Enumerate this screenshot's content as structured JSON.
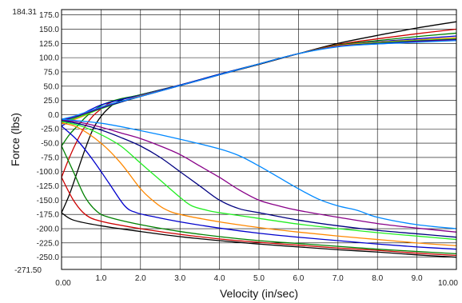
{
  "chart_data": {
    "type": "line",
    "xlabel": "Velocity (in/sec)",
    "ylabel": "Force (lbs)",
    "xlim": [
      0,
      10
    ],
    "ylim": [
      -271.5,
      184.31
    ],
    "ylim_labels": {
      "max": "184.31",
      "min": "-271.50"
    },
    "x_ticks": [
      {
        "v": 0,
        "label": "0.00"
      },
      {
        "v": 1,
        "label": "1.0"
      },
      {
        "v": 2,
        "label": "2.0"
      },
      {
        "v": 3,
        "label": "3.0"
      },
      {
        "v": 4,
        "label": "4.0"
      },
      {
        "v": 5,
        "label": "5.0"
      },
      {
        "v": 6,
        "label": "6.0"
      },
      {
        "v": 7,
        "label": "7.0"
      },
      {
        "v": 8,
        "label": "8.0"
      },
      {
        "v": 9,
        "label": "9.0"
      },
      {
        "v": 10,
        "label": "10.00"
      }
    ],
    "y_ticks": [
      {
        "v": 175,
        "label": "175.0"
      },
      {
        "v": 150,
        "label": "150.0"
      },
      {
        "v": 125,
        "label": "125.0"
      },
      {
        "v": 100,
        "label": "100.0"
      },
      {
        "v": 75,
        "label": "75.0"
      },
      {
        "v": 50,
        "label": "50.0"
      },
      {
        "v": 25,
        "label": "25.0"
      },
      {
        "v": 0,
        "label": "0.0"
      },
      {
        "v": -25,
        "label": "-25.0"
      },
      {
        "v": -50,
        "label": "-50.0"
      },
      {
        "v": -75,
        "label": "-75.0"
      },
      {
        "v": -100,
        "label": "-100.0"
      },
      {
        "v": -125,
        "label": "-125.0"
      },
      {
        "v": -150,
        "label": "-150.0"
      },
      {
        "v": -175,
        "label": "-175.0"
      },
      {
        "v": -200,
        "label": "-200.0"
      },
      {
        "v": -225,
        "label": "-225.0"
      },
      {
        "v": -250,
        "label": "-250.0"
      }
    ],
    "grid": true,
    "series": [
      {
        "color": "#000000",
        "points": [
          [
            0,
            -172
          ],
          [
            0.2,
            -140
          ],
          [
            0.4,
            -100
          ],
          [
            0.6,
            -60
          ],
          [
            0.8,
            -25
          ],
          [
            1.0,
            -3
          ],
          [
            1.2,
            12
          ],
          [
            1.4,
            22
          ],
          [
            1.6,
            28
          ],
          [
            2,
            35
          ],
          [
            3,
            52
          ],
          [
            4,
            70
          ],
          [
            5,
            88
          ],
          [
            6,
            107
          ],
          [
            7,
            125
          ],
          [
            8,
            139
          ],
          [
            9,
            152
          ],
          [
            10,
            163
          ]
        ]
      },
      {
        "color": "#000000",
        "points": [
          [
            0,
            -172
          ],
          [
            0.3,
            -185
          ],
          [
            1,
            -195
          ],
          [
            2,
            -205
          ],
          [
            3,
            -214
          ],
          [
            4,
            -221
          ],
          [
            5,
            -227
          ],
          [
            6,
            -232
          ],
          [
            7,
            -237
          ],
          [
            8,
            -241
          ],
          [
            9,
            -246
          ],
          [
            10,
            -250
          ]
        ]
      },
      {
        "color": "#cc0000",
        "points": [
          [
            0,
            -110
          ],
          [
            0.2,
            -75
          ],
          [
            0.4,
            -45
          ],
          [
            0.6,
            -20
          ],
          [
            0.8,
            -2
          ],
          [
            1.0,
            10
          ],
          [
            1.2,
            20
          ],
          [
            1.5,
            27
          ],
          [
            2,
            34
          ],
          [
            3,
            51
          ],
          [
            4,
            70
          ],
          [
            5,
            89
          ],
          [
            6,
            107
          ],
          [
            7,
            123
          ],
          [
            8,
            133
          ],
          [
            9,
            142
          ],
          [
            10,
            150
          ]
        ]
      },
      {
        "color": "#cc0000",
        "points": [
          [
            0,
            -110
          ],
          [
            0.3,
            -150
          ],
          [
            0.6,
            -175
          ],
          [
            1,
            -187
          ],
          [
            2,
            -200
          ],
          [
            3,
            -210
          ],
          [
            4,
            -218
          ],
          [
            5,
            -224
          ],
          [
            6,
            -229
          ],
          [
            7,
            -234
          ],
          [
            8,
            -238
          ],
          [
            9,
            -243
          ],
          [
            10,
            -247
          ]
        ]
      },
      {
        "color": "#008000",
        "points": [
          [
            0,
            -55
          ],
          [
            0.2,
            -35
          ],
          [
            0.4,
            -20
          ],
          [
            0.6,
            -5
          ],
          [
            0.8,
            7
          ],
          [
            1.0,
            16
          ],
          [
            1.2,
            22
          ],
          [
            1.5,
            28
          ],
          [
            2,
            35
          ],
          [
            3,
            52
          ],
          [
            4,
            71
          ],
          [
            5,
            89
          ],
          [
            6,
            107
          ],
          [
            7,
            122
          ],
          [
            8,
            130
          ],
          [
            9,
            137
          ],
          [
            10,
            143
          ]
        ]
      },
      {
        "color": "#008000",
        "points": [
          [
            0,
            -55
          ],
          [
            0.3,
            -100
          ],
          [
            0.6,
            -145
          ],
          [
            0.9,
            -170
          ],
          [
            1.2,
            -180
          ],
          [
            2,
            -193
          ],
          [
            3,
            -205
          ],
          [
            4,
            -214
          ],
          [
            5,
            -221
          ],
          [
            6,
            -226
          ],
          [
            7,
            -231
          ],
          [
            8,
            -236
          ],
          [
            9,
            -240
          ],
          [
            10,
            -244
          ]
        ]
      },
      {
        "color": "#0000cc",
        "points": [
          [
            0,
            -20
          ],
          [
            0.2,
            -12
          ],
          [
            0.4,
            -4
          ],
          [
            0.6,
            4
          ],
          [
            0.8,
            11
          ],
          [
            1.0,
            17
          ],
          [
            1.3,
            23
          ],
          [
            1.6,
            28
          ],
          [
            2,
            34
          ],
          [
            3,
            52
          ],
          [
            4,
            71
          ],
          [
            5,
            89
          ],
          [
            6,
            107
          ],
          [
            7,
            121
          ],
          [
            8,
            128
          ],
          [
            9,
            133
          ],
          [
            10,
            138
          ]
        ]
      },
      {
        "color": "#0000cc",
        "points": [
          [
            0,
            -20
          ],
          [
            0.4,
            -45
          ],
          [
            0.8,
            -80
          ],
          [
            1.2,
            -120
          ],
          [
            1.6,
            -160
          ],
          [
            1.9,
            -172
          ],
          [
            2.4,
            -180
          ],
          [
            3,
            -188
          ],
          [
            4,
            -199
          ],
          [
            5,
            -208
          ],
          [
            6,
            -215
          ],
          [
            7,
            -221
          ],
          [
            8,
            -227
          ],
          [
            9,
            -232
          ],
          [
            10,
            -236
          ]
        ]
      },
      {
        "color": "#ff8800",
        "points": [
          [
            0,
            -15
          ],
          [
            0.3,
            -9
          ],
          [
            0.6,
            -1
          ],
          [
            0.9,
            8
          ],
          [
            1.2,
            16
          ],
          [
            1.6,
            25
          ],
          [
            2,
            33
          ],
          [
            3,
            51
          ],
          [
            4,
            70
          ],
          [
            5,
            89
          ],
          [
            6,
            107
          ],
          [
            7,
            121
          ],
          [
            8,
            127
          ],
          [
            9,
            131
          ],
          [
            10,
            135
          ]
        ]
      },
      {
        "color": "#ff8800",
        "points": [
          [
            0,
            -15
          ],
          [
            0.4,
            -22
          ],
          [
            1,
            -50
          ],
          [
            1.5,
            -85
          ],
          [
            2,
            -130
          ],
          [
            2.3,
            -150
          ],
          [
            2.6,
            -165
          ],
          [
            3,
            -175
          ],
          [
            4,
            -188
          ],
          [
            5,
            -198
          ],
          [
            6,
            -206
          ],
          [
            7,
            -213
          ],
          [
            8,
            -219
          ],
          [
            9,
            -225
          ],
          [
            10,
            -230
          ]
        ]
      },
      {
        "color": "#22ee22",
        "points": [
          [
            0,
            -12
          ],
          [
            0.3,
            -7
          ],
          [
            0.6,
            0
          ],
          [
            0.9,
            8
          ],
          [
            1.2,
            15
          ],
          [
            1.6,
            24
          ],
          [
            2,
            32
          ],
          [
            3,
            51
          ],
          [
            4,
            70
          ],
          [
            5,
            89
          ],
          [
            6,
            107
          ],
          [
            7,
            120
          ],
          [
            8,
            126
          ],
          [
            9,
            130
          ],
          [
            10,
            133
          ]
        ]
      },
      {
        "color": "#22ee22",
        "points": [
          [
            0,
            -12
          ],
          [
            0.5,
            -20
          ],
          [
            1,
            -35
          ],
          [
            1.5,
            -55
          ],
          [
            2,
            -85
          ],
          [
            2.5,
            -115
          ],
          [
            3,
            -145
          ],
          [
            3.3,
            -160
          ],
          [
            3.7,
            -168
          ],
          [
            4,
            -172
          ],
          [
            5,
            -182
          ],
          [
            6,
            -192
          ],
          [
            7,
            -200
          ],
          [
            8,
            -207
          ],
          [
            9,
            -213
          ],
          [
            10,
            -219
          ]
        ]
      },
      {
        "color": "#000080",
        "points": [
          [
            0,
            -10
          ],
          [
            0.3,
            -5
          ],
          [
            0.6,
            2
          ],
          [
            0.9,
            9
          ],
          [
            1.2,
            16
          ],
          [
            1.6,
            24
          ],
          [
            2,
            32
          ],
          [
            3,
            51
          ],
          [
            4,
            70
          ],
          [
            5,
            89
          ],
          [
            6,
            107
          ],
          [
            7,
            120
          ],
          [
            8,
            125
          ],
          [
            9,
            129
          ],
          [
            10,
            132
          ]
        ]
      },
      {
        "color": "#000080",
        "points": [
          [
            0,
            -10
          ],
          [
            0.5,
            -17
          ],
          [
            1,
            -27
          ],
          [
            1.5,
            -40
          ],
          [
            2,
            -55
          ],
          [
            2.5,
            -75
          ],
          [
            3,
            -100
          ],
          [
            3.5,
            -125
          ],
          [
            4,
            -150
          ],
          [
            4.5,
            -165
          ],
          [
            5,
            -172
          ],
          [
            6,
            -185
          ],
          [
            7,
            -195
          ],
          [
            8,
            -203
          ],
          [
            9,
            -209
          ],
          [
            10,
            -215
          ]
        ]
      },
      {
        "color": "#880088",
        "points": [
          [
            0,
            -9
          ],
          [
            0.3,
            -4
          ],
          [
            0.6,
            3
          ],
          [
            0.9,
            10
          ],
          [
            1.2,
            17
          ],
          [
            1.6,
            25
          ],
          [
            2,
            32
          ],
          [
            3,
            51
          ],
          [
            4,
            70
          ],
          [
            5,
            89
          ],
          [
            6,
            107
          ],
          [
            7,
            120
          ],
          [
            8,
            124
          ],
          [
            9,
            128
          ],
          [
            10,
            131
          ]
        ]
      },
      {
        "color": "#880088",
        "points": [
          [
            0,
            -9
          ],
          [
            0.5,
            -14
          ],
          [
            1,
            -22
          ],
          [
            1.5,
            -32
          ],
          [
            2,
            -42
          ],
          [
            2.5,
            -55
          ],
          [
            3,
            -70
          ],
          [
            3.5,
            -90
          ],
          [
            4,
            -110
          ],
          [
            4.5,
            -132
          ],
          [
            5,
            -150
          ],
          [
            5.5,
            -160
          ],
          [
            6,
            -168
          ],
          [
            7,
            -180
          ],
          [
            8,
            -191
          ],
          [
            9,
            -199
          ],
          [
            10,
            -206
          ]
        ]
      },
      {
        "color": "#0088ff",
        "points": [
          [
            0,
            -8
          ],
          [
            0.3,
            -3
          ],
          [
            0.6,
            4
          ],
          [
            0.9,
            11
          ],
          [
            1.2,
            18
          ],
          [
            1.6,
            25
          ],
          [
            2,
            32
          ],
          [
            3,
            51
          ],
          [
            4,
            70
          ],
          [
            5,
            89
          ],
          [
            6,
            107
          ],
          [
            7,
            119
          ],
          [
            8,
            124
          ],
          [
            9,
            127
          ],
          [
            10,
            130
          ]
        ]
      },
      {
        "color": "#0088ff",
        "points": [
          [
            0,
            -8
          ],
          [
            1,
            -15
          ],
          [
            2,
            -28
          ],
          [
            3,
            -43
          ],
          [
            4,
            -60
          ],
          [
            4.5,
            -72
          ],
          [
            5,
            -90
          ],
          [
            5.5,
            -110
          ],
          [
            6,
            -130
          ],
          [
            6.5,
            -148
          ],
          [
            7,
            -160
          ],
          [
            7.5,
            -168
          ],
          [
            8,
            -180
          ],
          [
            9,
            -193
          ],
          [
            10,
            -200
          ]
        ]
      }
    ]
  }
}
